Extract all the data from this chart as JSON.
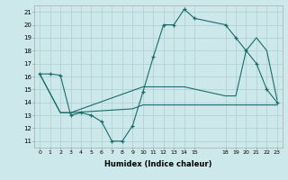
{
  "xlabel": "Humidex (Indice chaleur)",
  "background_color": "#cce8ea",
  "grid_color": "#aacfd2",
  "line_color": "#1a6b6b",
  "xlim": [
    -0.5,
    23.5
  ],
  "ylim": [
    10.5,
    21.5
  ],
  "yticks": [
    11,
    12,
    13,
    14,
    15,
    16,
    17,
    18,
    19,
    20,
    21
  ],
  "xticks": [
    0,
    1,
    2,
    3,
    4,
    5,
    6,
    7,
    8,
    9,
    10,
    11,
    12,
    13,
    14,
    15,
    18,
    19,
    20,
    21,
    22,
    23
  ],
  "lines": [
    {
      "x": [
        0,
        1,
        2,
        3,
        4,
        5,
        6,
        7,
        8,
        9,
        10,
        11,
        12,
        13,
        14,
        15,
        18,
        19,
        20,
        21,
        22,
        23
      ],
      "y": [
        16.2,
        16.2,
        16.1,
        13.0,
        13.2,
        13.0,
        12.5,
        11.0,
        11.0,
        12.2,
        14.8,
        17.5,
        20.0,
        20.0,
        21.2,
        20.5,
        20.0,
        19.0,
        18.0,
        17.0,
        15.0,
        14.0
      ],
      "marker": true
    },
    {
      "x": [
        0,
        2,
        3,
        10,
        14,
        18,
        19,
        20,
        21,
        22,
        23
      ],
      "y": [
        16.2,
        13.2,
        13.2,
        15.2,
        15.2,
        14.5,
        14.5,
        18.0,
        19.0,
        18.0,
        14.2
      ],
      "marker": false
    },
    {
      "x": [
        0,
        2,
        3,
        9,
        10,
        14,
        18,
        19,
        20,
        21,
        22,
        23
      ],
      "y": [
        16.2,
        13.2,
        13.2,
        13.5,
        13.8,
        13.8,
        13.8,
        13.8,
        13.8,
        13.8,
        13.8,
        13.8
      ],
      "marker": false
    }
  ]
}
